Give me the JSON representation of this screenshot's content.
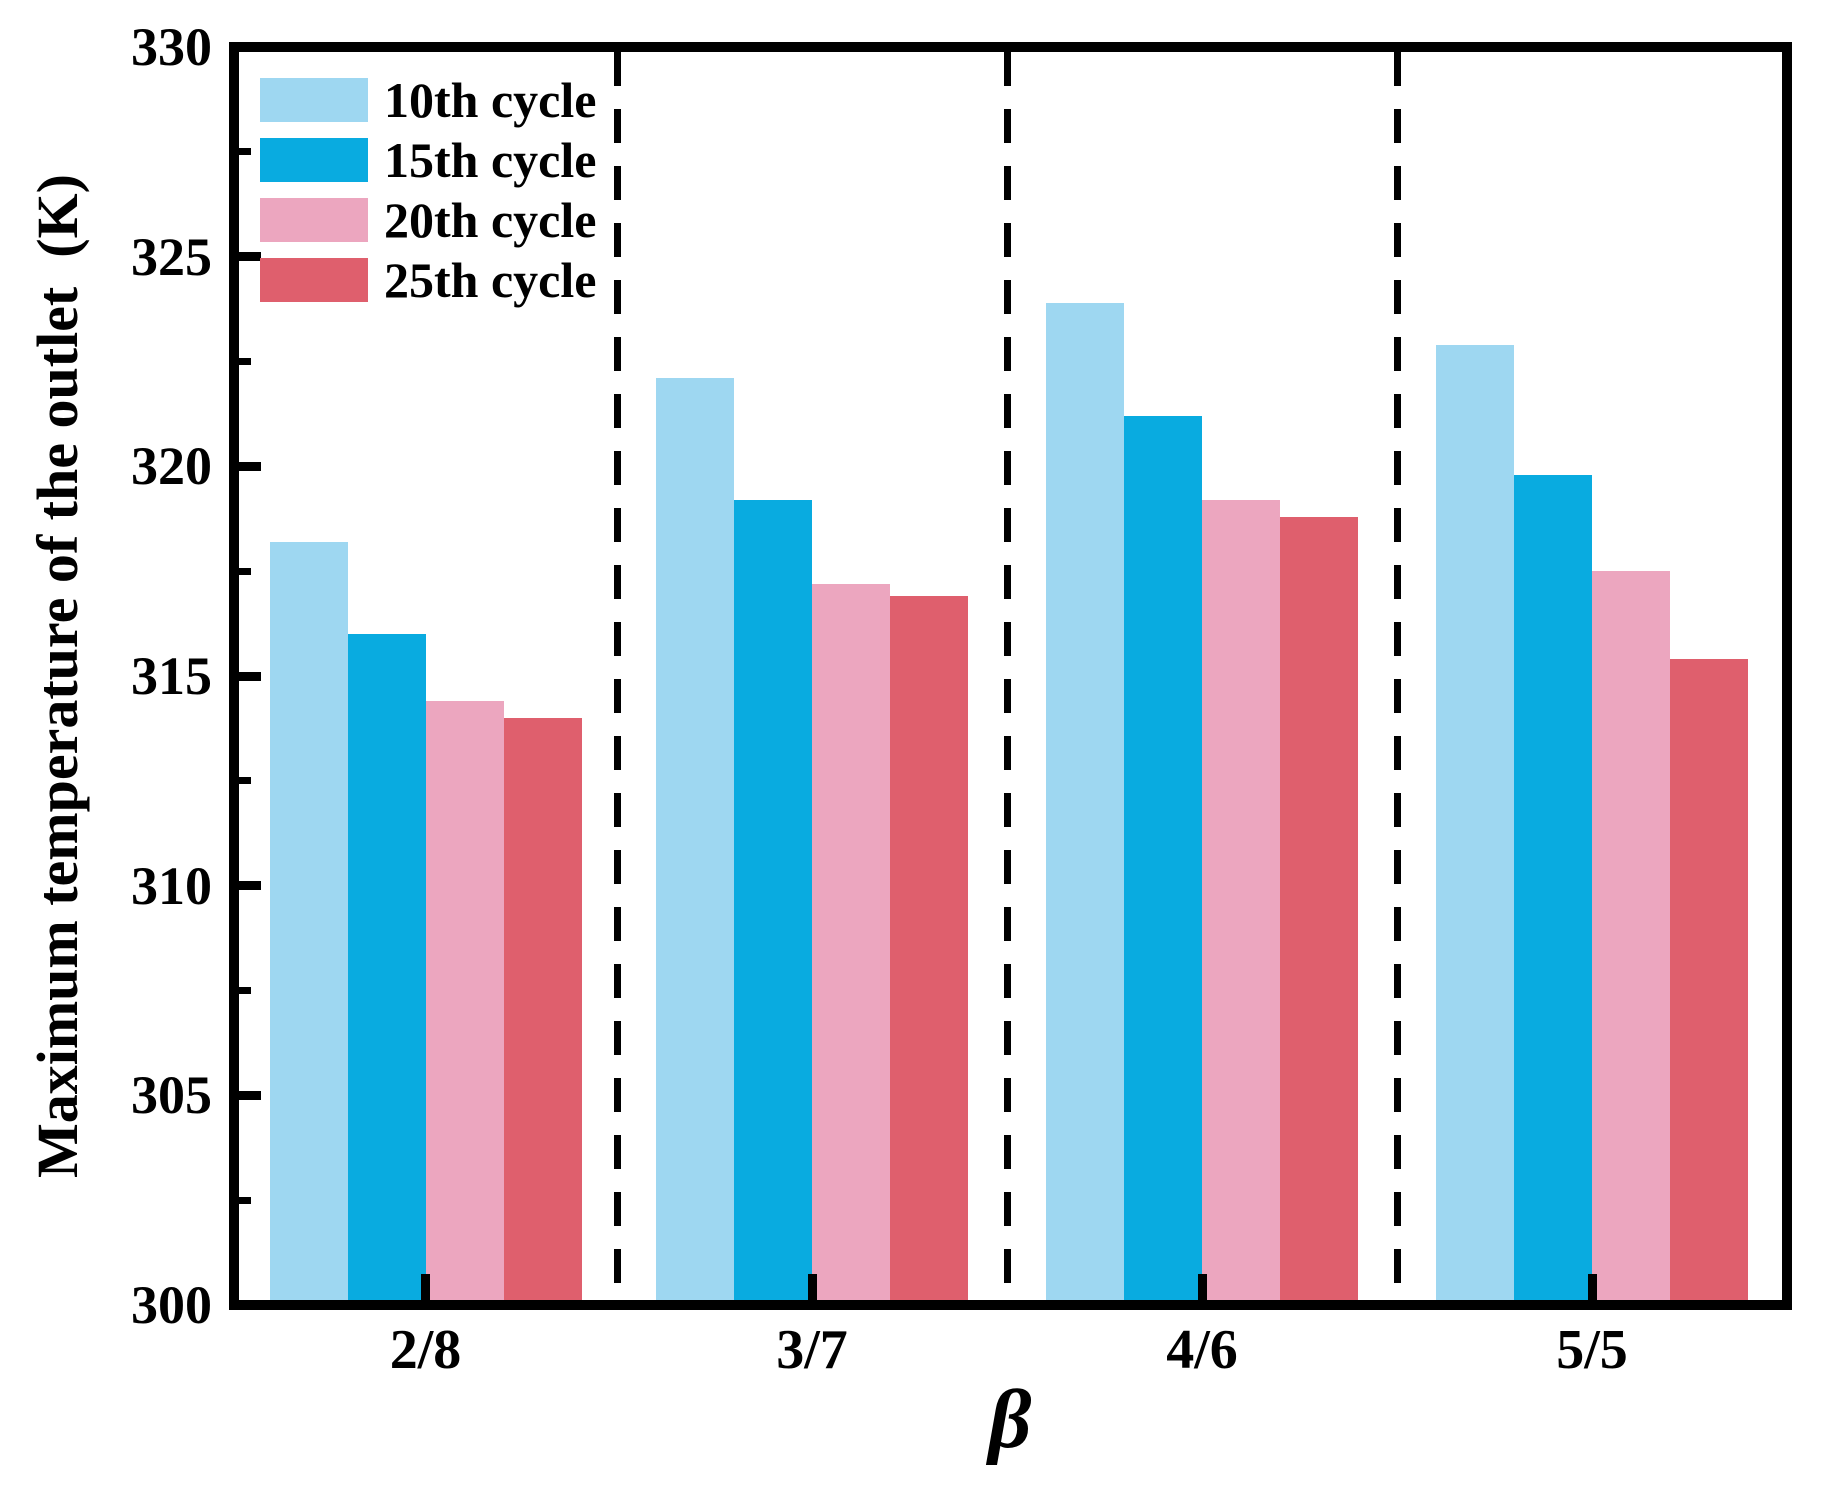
{
  "figure": {
    "background": "#ffffff"
  },
  "chart_data": {
    "type": "bar",
    "title": "",
    "xlabel": "β",
    "ylabel": "Maximum temperature of the outlet  (K)",
    "categories": [
      "2/8",
      "3/7",
      "4/6",
      "5/5"
    ],
    "series": [
      {
        "name": "10th cycle",
        "color": "#9ED7F1",
        "values": [
          318.2,
          322.1,
          323.9,
          322.9
        ]
      },
      {
        "name": "15th cycle",
        "color": "#09ABE0",
        "values": [
          316.0,
          319.2,
          321.2,
          319.8
        ]
      },
      {
        "name": "20th cycle",
        "color": "#ECA6BF",
        "values": [
          314.4,
          317.2,
          319.2,
          317.5
        ]
      },
      {
        "name": "25th cycle",
        "color": "#DF5F6D",
        "values": [
          314.0,
          316.9,
          318.8,
          315.4
        ]
      }
    ],
    "ylim": [
      300,
      330
    ],
    "yticks": [
      330,
      325,
      320,
      315,
      310,
      305,
      300
    ],
    "minor_tick_interval": 2.5,
    "grid": false,
    "legend_position": "top-left",
    "group_separators": "dashed-vertical-lines",
    "axis_color": "#000000",
    "text_color": "#000000"
  }
}
